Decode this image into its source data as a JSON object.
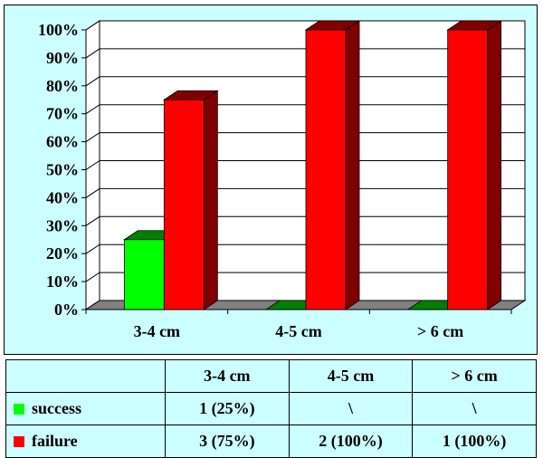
{
  "chart_data": {
    "type": "bar",
    "categories": [
      "3-4 cm",
      "4-5 cm",
      "> 6 cm"
    ],
    "series": [
      {
        "name": "success",
        "values": [
          25,
          0,
          0
        ],
        "color": "#00ff00"
      },
      {
        "name": "failure",
        "values": [
          75,
          100,
          100
        ],
        "color": "#ff0000"
      }
    ],
    "y_ticks": [
      "0%",
      "10%",
      "20%",
      "30%",
      "40%",
      "50%",
      "60%",
      "70%",
      "80%",
      "90%",
      "100%"
    ],
    "ylim": [
      0,
      100
    ],
    "grid": true,
    "three_d": true,
    "legend": "data-table-below"
  },
  "table": {
    "header": [
      "3-4 cm",
      "4-5 cm",
      "> 6 cm"
    ],
    "rows": [
      {
        "label": "success",
        "cells": [
          "1 (25%)",
          "\\",
          "\\"
        ]
      },
      {
        "label": "failure",
        "cells": [
          "3 (75%)",
          "2 (100%)",
          "1 (100%)"
        ]
      }
    ]
  },
  "colors": {
    "panel_bg": "#ccffff",
    "plot_bg": "#ffffff",
    "floor": "#808080",
    "success": "#00ff00",
    "success_side": "#008000",
    "failure": "#ff0000",
    "failure_side": "#800000"
  }
}
